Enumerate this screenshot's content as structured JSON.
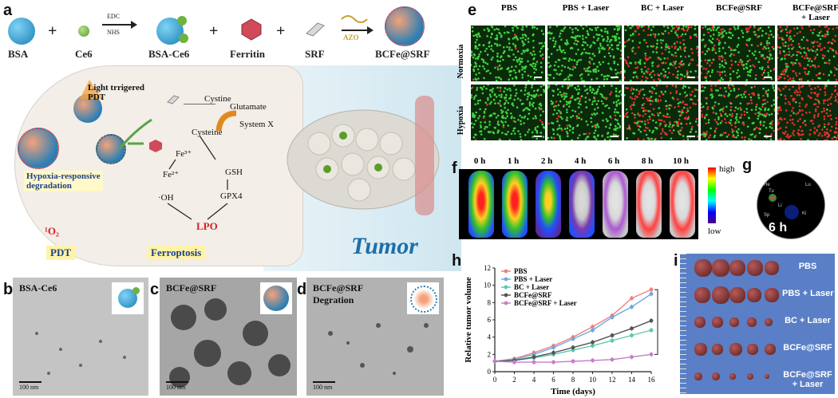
{
  "panel_labels": {
    "a": "a",
    "b": "b",
    "c": "c",
    "d": "d",
    "e": "e",
    "f": "f",
    "g": "g",
    "h": "h",
    "i": "i"
  },
  "synthesis": {
    "bsa": "BSA",
    "plus": "+",
    "ce6": "Ce6",
    "edc": "EDC",
    "nhs": "NHS",
    "bsa_ce6": "BSA-Ce6",
    "ferritin": "Ferritin",
    "srf": "SRF",
    "azo": "AZO",
    "product": "BCFe@SRF"
  },
  "mechanism": {
    "light_pdt": "Light trrigered\nPDT",
    "cystine": "Cystine",
    "glutamate": "Glutamate",
    "system_xc": "System X",
    "cysteine": "Cysteine",
    "fe3": "Fe³⁺",
    "fe2": "Fe²⁺",
    "gsh": "GSH",
    "gpx4": "GPX4",
    "oh": "·OH",
    "hypoxia": "Hypoxia-responsive\ndegradation",
    "o2": "¹O₂",
    "lpo": "LPO",
    "pdt": "PDT",
    "ferroptosis": "Ferroptosis",
    "tumor": "Tumor"
  },
  "tem": [
    {
      "caption": "BSA-Ce6",
      "scale": "100 nm"
    },
    {
      "caption": "BCFe@SRF",
      "scale": "100 nm"
    },
    {
      "caption": "BCFe@SRF\nDegration",
      "scale": "100 nm"
    }
  ],
  "panel_e": {
    "columns": [
      "PBS",
      "PBS + Laser",
      "BC + Laser",
      "BCFe@SRF",
      "BCFe@SRF\n+ Laser"
    ],
    "rows": [
      "Normoxia",
      "Hypoxia"
    ],
    "red_intensity": [
      [
        0.02,
        0.05,
        0.45,
        0.35,
        0.6
      ],
      [
        0.05,
        0.1,
        0.55,
        0.45,
        0.95
      ]
    ]
  },
  "panel_f": {
    "times": [
      "0 h",
      "1 h",
      "2 h",
      "4 h",
      "6 h",
      "8 h",
      "10 h"
    ],
    "colorbar_high": "high",
    "colorbar_low": "low"
  },
  "panel_g": {
    "time": "6 h",
    "organs": [
      "He",
      "Lu",
      "Tu",
      "Li",
      "Sp",
      "Ki"
    ]
  },
  "chart_data": {
    "type": "line",
    "xlabel": "Time (days)",
    "ylabel": "Relative tumor volume",
    "x": [
      0,
      2,
      4,
      6,
      8,
      10,
      12,
      14,
      16
    ],
    "xlim": [
      0,
      16
    ],
    "ylim": [
      0,
      12
    ],
    "yticks": [
      0,
      2,
      4,
      6,
      8,
      10,
      12
    ],
    "significance": "***",
    "legend_position": "top-left",
    "series": [
      {
        "name": "PBS",
        "color": "#f08080",
        "values": [
          1.2,
          1.5,
          2.2,
          3.0,
          4.0,
          5.2,
          6.5,
          8.5,
          9.5
        ]
      },
      {
        "name": "PBS + Laser",
        "color": "#6fa8dc",
        "values": [
          1.2,
          1.4,
          2.0,
          2.8,
          3.8,
          4.8,
          6.3,
          7.5,
          9.0
        ]
      },
      {
        "name": "BC + Laser",
        "color": "#5bc8b0",
        "values": [
          1.2,
          1.3,
          1.6,
          2.0,
          2.5,
          3.0,
          3.6,
          4.2,
          4.8
        ]
      },
      {
        "name": "BCFe@SRF",
        "color": "#555555",
        "values": [
          1.2,
          1.3,
          1.7,
          2.2,
          2.8,
          3.4,
          4.2,
          5.0,
          5.9
        ]
      },
      {
        "name": "BCFe@SRF + Laser",
        "color": "#c77dcc",
        "values": [
          1.2,
          1.1,
          1.1,
          1.1,
          1.2,
          1.3,
          1.4,
          1.7,
          2.0
        ]
      }
    ]
  },
  "panel_i": {
    "rows": [
      "PBS",
      "PBS + Laser",
      "BC + Laser",
      "BCFe@SRF",
      "BCFe@SRF\n+ Laser"
    ]
  }
}
